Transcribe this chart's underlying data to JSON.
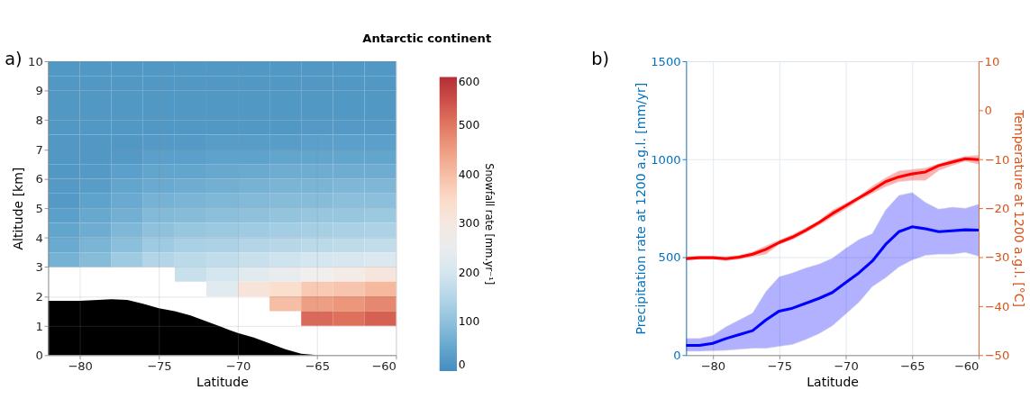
{
  "chart_data": [
    {
      "type": "heatmap",
      "title": "Antarctic continent",
      "annotations": [
        "a)"
      ],
      "xlabel": "Latitude",
      "ylabel": "Altitude [km]",
      "clabel": "Snowfall rate [mm.yr⁻¹]",
      "x": [
        -81,
        -79,
        -77,
        -75,
        -73,
        -71,
        -69,
        -67,
        -65,
        -63,
        -61
      ],
      "y": [
        9.75,
        9.25,
        8.75,
        8.25,
        7.75,
        7.25,
        6.75,
        6.25,
        5.75,
        5.25,
        4.75,
        4.25,
        3.75,
        3.25,
        2.75,
        2.25,
        1.75,
        1.25
      ],
      "cells": [
        [
          20,
          20,
          20,
          20,
          20,
          20,
          20,
          20,
          20,
          20,
          20
        ],
        [
          20,
          20,
          20,
          20,
          20,
          20,
          20,
          20,
          20,
          20,
          20
        ],
        [
          20,
          20,
          20,
          20,
          20,
          20,
          20,
          20,
          20,
          20,
          20
        ],
        [
          20,
          20,
          20,
          20,
          20,
          20,
          20,
          20,
          20,
          20,
          20
        ],
        [
          20,
          20,
          20,
          20,
          20,
          20,
          20,
          20,
          25,
          25,
          25
        ],
        [
          20,
          20,
          20,
          25,
          25,
          30,
          30,
          30,
          35,
          35,
          35
        ],
        [
          20,
          20,
          25,
          35,
          35,
          40,
          40,
          45,
          45,
          45,
          45
        ],
        [
          20,
          25,
          35,
          45,
          45,
          50,
          55,
          60,
          60,
          60,
          60
        ],
        [
          25,
          30,
          45,
          55,
          60,
          65,
          70,
          75,
          75,
          80,
          80
        ],
        [
          25,
          40,
          55,
          70,
          75,
          80,
          85,
          90,
          90,
          95,
          95
        ],
        [
          35,
          50,
          65,
          85,
          90,
          95,
          100,
          105,
          110,
          110,
          115
        ],
        [
          45,
          60,
          80,
          100,
          110,
          115,
          120,
          125,
          130,
          135,
          140
        ],
        [
          55,
          75,
          95,
          120,
          135,
          140,
          150,
          155,
          160,
          165,
          170
        ],
        [
          70,
          90,
          120,
          150,
          160,
          170,
          180,
          190,
          200,
          210,
          220
        ],
        [
          null,
          null,
          null,
          null,
          180,
          200,
          230,
          250,
          270,
          290,
          310
        ],
        [
          null,
          null,
          null,
          null,
          null,
          230,
          320,
          340,
          380,
          390,
          410
        ],
        [
          null,
          null,
          null,
          null,
          null,
          null,
          null,
          400,
          450,
          460,
          480
        ],
        [
          null,
          null,
          null,
          null,
          null,
          null,
          null,
          null,
          520,
          510,
          530
        ]
      ],
      "xlim": [
        -82,
        -60
      ],
      "xticks": [
        -80,
        -75,
        -70,
        -65,
        -60
      ],
      "ylim": [
        0,
        10
      ],
      "yticks": [
        0,
        1,
        2,
        3,
        4,
        5,
        6,
        7,
        8,
        9,
        10
      ],
      "clim": [
        0,
        600
      ],
      "cticks": [
        0,
        100,
        200,
        300,
        400,
        500,
        600
      ],
      "grid": true,
      "series": [
        {
          "type": "area",
          "color": "#000000",
          "x": [
            -82,
            -80,
            -78,
            -77,
            -76,
            -75,
            -74,
            -73,
            -72,
            -71,
            -70,
            -69,
            -68,
            -67,
            -66,
            -65,
            -60
          ],
          "values": [
            1.85,
            1.85,
            1.9,
            1.88,
            1.75,
            1.6,
            1.5,
            1.35,
            1.15,
            0.95,
            0.75,
            0.6,
            0.4,
            0.2,
            0.05,
            0,
            0
          ]
        }
      ]
    },
    {
      "type": "line",
      "annotations": [
        "b)"
      ],
      "xlabel": "Latitude",
      "ylabel": "Precipitation rate at 1200 a.g.l. [mm/yr]",
      "y2label": "Temperature at 1200 a.g.l. [°C]",
      "x": [
        -82,
        -81,
        -80,
        -79,
        -78,
        -77,
        -76,
        -75,
        -74,
        -73,
        -72,
        -71,
        -70,
        -69,
        -68,
        -67,
        -66,
        -65,
        -64,
        -63,
        -62,
        -61,
        -60
      ],
      "xlim": [
        -82,
        -60
      ],
      "xticks": [
        -80,
        -75,
        -70,
        -65,
        -60
      ],
      "ylim": [
        0,
        1500
      ],
      "yticks": [
        0,
        500,
        1000,
        1500
      ],
      "y2lim": [
        -50,
        10
      ],
      "y2ticks": [
        -50,
        -40,
        -30,
        -20,
        -10,
        0,
        10
      ],
      "grid": true,
      "series": [
        {
          "color": "#0000ff",
          "values": [
            50,
            50,
            60,
            85,
            105,
            125,
            180,
            225,
            240,
            265,
            290,
            320,
            370,
            420,
            480,
            565,
            630,
            655,
            645,
            630,
            635,
            640,
            638
          ],
          "upper": [
            85,
            85,
            100,
            145,
            180,
            215,
            325,
            400,
            420,
            445,
            465,
            495,
            545,
            590,
            620,
            740,
            815,
            830,
            780,
            745,
            755,
            750,
            770
          ],
          "lower": [
            20,
            20,
            22,
            25,
            30,
            35,
            35,
            45,
            55,
            80,
            110,
            150,
            210,
            270,
            350,
            395,
            450,
            485,
            510,
            515,
            515,
            525,
            505
          ]
        },
        {
          "color": "#ff0000",
          "axis": "y2",
          "values": [
            -30.3,
            -30.1,
            -30.1,
            -30.3,
            -30,
            -29.4,
            -28.4,
            -27,
            -25.9,
            -24.5,
            -22.9,
            -21.1,
            -19.5,
            -17.9,
            -16.3,
            -14.6,
            -13.6,
            -13,
            -12.6,
            -11.3,
            -10.6,
            -9.9,
            -10.1
          ],
          "upper": [
            -29.9,
            -29.8,
            -29.8,
            -29.9,
            -29.6,
            -28.9,
            -27.7,
            -26.5,
            -25.4,
            -24,
            -22.5,
            -20.4,
            -19,
            -17.5,
            -15.5,
            -13.8,
            -12.4,
            -12.1,
            -11.8,
            -10.9,
            -10.1,
            -9.4,
            -9.2
          ],
          "lower": [
            -30.6,
            -30.4,
            -30.4,
            -30.7,
            -30.4,
            -29.9,
            -29.4,
            -27.4,
            -26.4,
            -25,
            -23.5,
            -21.8,
            -20.2,
            -18.4,
            -17,
            -15.6,
            -14.6,
            -14.3,
            -14.3,
            -12.3,
            -11.3,
            -10.4,
            -11
          ]
        }
      ]
    }
  ]
}
